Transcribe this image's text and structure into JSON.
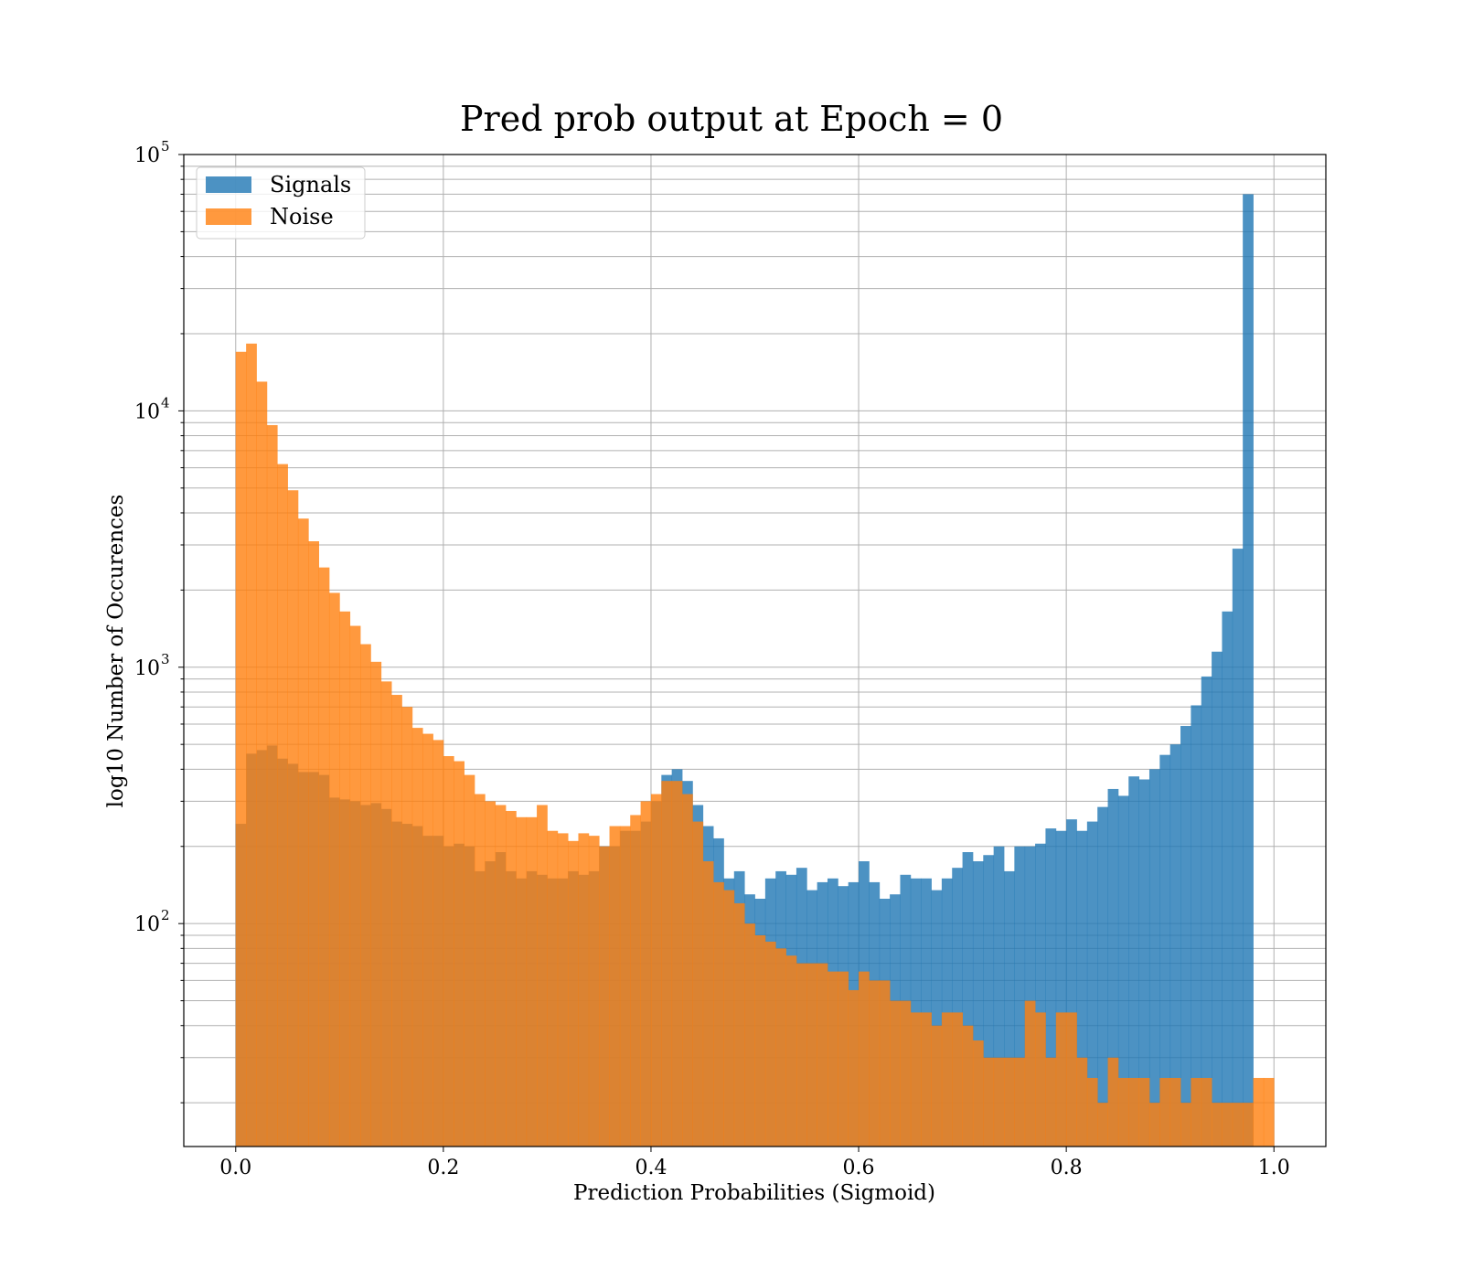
{
  "chart_data": {
    "type": "bar",
    "title": "Pred prob output at Epoch = 0",
    "xlabel": "Prediction Probabilities (Sigmoid)",
    "ylabel": "log10 Number of Occurences",
    "yscale": "log",
    "xlim": [
      -0.05,
      1.05
    ],
    "ylim": [
      13.5,
      100000
    ],
    "grid": true,
    "legend_position": "top-left",
    "bin_width": 0.01,
    "bin_start": 0.0,
    "x_ticks": [
      {
        "value": 0.0,
        "label": "0.0"
      },
      {
        "value": 0.2,
        "label": "0.2"
      },
      {
        "value": 0.4,
        "label": "0.4"
      },
      {
        "value": 0.6,
        "label": "0.6"
      },
      {
        "value": 0.8,
        "label": "0.8"
      },
      {
        "value": 1.0,
        "label": "1.0"
      }
    ],
    "y_ticks": [
      {
        "value": 100,
        "base": "10",
        "exp": "2"
      },
      {
        "value": 1000,
        "base": "10",
        "exp": "3"
      },
      {
        "value": 10000,
        "base": "10",
        "exp": "4"
      },
      {
        "value": 100000,
        "base": "10",
        "exp": "5"
      }
    ],
    "series": [
      {
        "name": "Signals",
        "color": "#1f77b4",
        "values": [
          245,
          460,
          475,
          495,
          440,
          420,
          390,
          390,
          380,
          310,
          305,
          300,
          290,
          295,
          280,
          250,
          245,
          240,
          220,
          220,
          200,
          205,
          200,
          160,
          175,
          190,
          160,
          150,
          160,
          155,
          150,
          150,
          160,
          155,
          160,
          200,
          200,
          230,
          230,
          250,
          300,
          380,
          400,
          360,
          290,
          240,
          215,
          150,
          160,
          130,
          125,
          150,
          160,
          155,
          165,
          135,
          145,
          150,
          140,
          145,
          175,
          145,
          125,
          130,
          155,
          150,
          150,
          135,
          150,
          165,
          190,
          175,
          185,
          200,
          160,
          200,
          200,
          205,
          235,
          230,
          255,
          230,
          250,
          285,
          335,
          315,
          375,
          365,
          400,
          455,
          500,
          590,
          710,
          920,
          1150,
          1650,
          2900,
          70000,
          0,
          0
        ]
      },
      {
        "name": "Noise",
        "color": "#ff7f0e",
        "values": [
          17000,
          18300,
          13000,
          8800,
          6200,
          4900,
          3800,
          3100,
          2450,
          1950,
          1650,
          1450,
          1230,
          1050,
          880,
          780,
          700,
          580,
          550,
          520,
          450,
          430,
          380,
          320,
          300,
          290,
          275,
          260,
          260,
          290,
          230,
          225,
          210,
          225,
          220,
          200,
          240,
          240,
          265,
          300,
          320,
          360,
          360,
          320,
          250,
          175,
          145,
          135,
          120,
          100,
          90,
          85,
          80,
          75,
          70,
          70,
          70,
          65,
          65,
          55,
          65,
          60,
          60,
          50,
          50,
          45,
          45,
          40,
          45,
          45,
          40,
          35,
          30,
          30,
          30,
          30,
          50,
          45,
          30,
          45,
          45,
          30,
          25,
          20,
          30,
          25,
          25,
          25,
          20,
          25,
          25,
          20,
          25,
          25,
          20,
          20,
          20,
          20,
          25,
          25
        ]
      }
    ]
  }
}
